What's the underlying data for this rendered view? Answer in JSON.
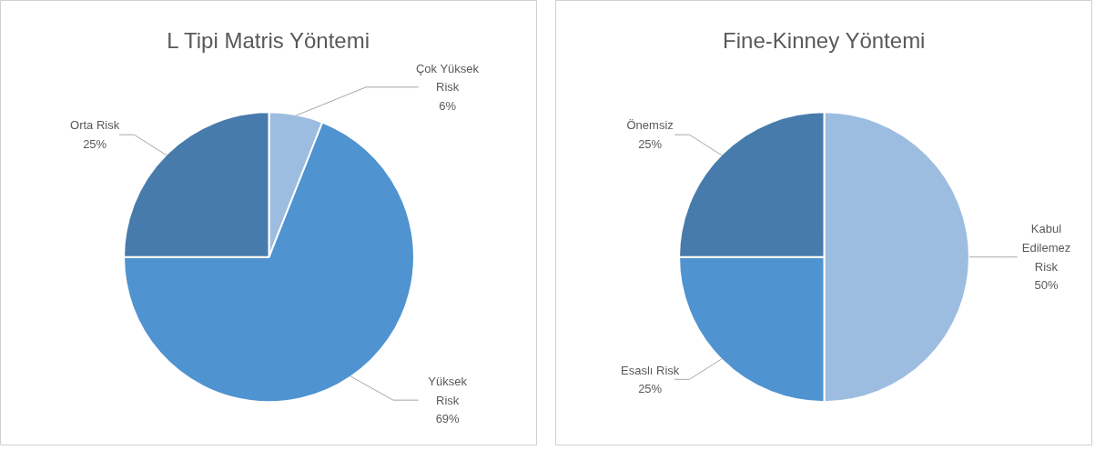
{
  "chart_data": [
    {
      "type": "pie",
      "title": "L Tipi Matris Yöntemi",
      "categories": [
        "Çok Yüksek Risk",
        "Yüksek Risk",
        "Orta Risk"
      ],
      "values": [
        6,
        69,
        25
      ],
      "value_labels": [
        "6%",
        "69%",
        "25%"
      ],
      "colors": [
        "#9dbde0",
        "#4f93d0",
        "#477bab"
      ]
    },
    {
      "type": "pie",
      "title": "Fine-Kinney Yöntemi",
      "categories": [
        "Kabul Edilemez Risk",
        "Esaslı Risk",
        "Önemsiz"
      ],
      "values": [
        50,
        25,
        25
      ],
      "value_labels": [
        "50%",
        "25%",
        "25%"
      ],
      "colors": [
        "#9dbde0",
        "#4f93d0",
        "#477bab"
      ]
    }
  ]
}
